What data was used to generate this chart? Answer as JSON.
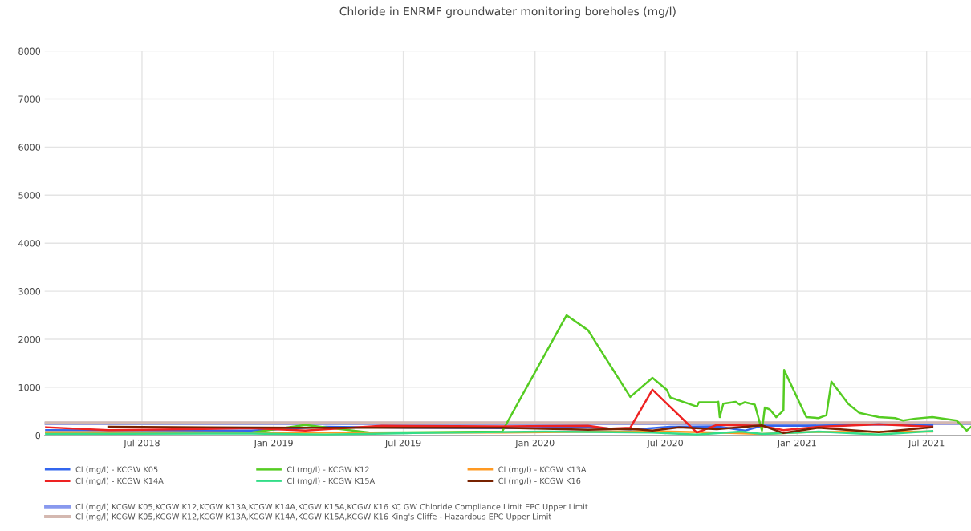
{
  "chart_data": {
    "type": "line",
    "title": "Chloride in ENRMF groundwater monitoring boreholes (mg/l)",
    "xlim": [
      "2018-02-15",
      "2021-09-01"
    ],
    "xticks": [
      {
        "value": "2018-07-01",
        "label": "Jul 2018"
      },
      {
        "value": "2019-01-01",
        "label": "Jan 2019"
      },
      {
        "value": "2019-07-01",
        "label": "Jul 2019"
      },
      {
        "value": "2020-01-01",
        "label": "Jan 2020"
      },
      {
        "value": "2020-07-01",
        "label": "Jul 2020"
      },
      {
        "value": "2021-01-01",
        "label": "Jan 2021"
      },
      {
        "value": "2021-07-01",
        "label": "Jul 2021"
      }
    ],
    "ylim": [
      0,
      8000
    ],
    "yticks": [
      0,
      1000,
      2000,
      3000,
      4000,
      5000,
      6000,
      7000,
      8000
    ],
    "grid": true,
    "legend": "bottom",
    "marker": "none",
    "line_style": "solid",
    "series": [
      {
        "name": "Cl (mg/l) - KCGW K05",
        "color": "#3366ee",
        "x": [
          "2018-02-17",
          "2018-12-01",
          "2019-03-15",
          "2019-07-15",
          "2019-11-16",
          "2020-03-15",
          "2020-05-13",
          "2020-07-08",
          "2020-09-11",
          "2020-10-20",
          "2020-11-13",
          "2021-01-14",
          "2021-04-25",
          "2021-07-09"
        ],
        "values": [
          110,
          100,
          180,
          160,
          150,
          170,
          120,
          180,
          190,
          100,
          200,
          200,
          230,
          210
        ]
      },
      {
        "name": "Cl (mg/l) - KCGW K12",
        "color": "#55cc22",
        "x": [
          "2018-02-17",
          "2018-12-01",
          "2019-02-14",
          "2019-05-15",
          "2019-11-16",
          "2020-02-14",
          "2020-03-15",
          "2020-05-13",
          "2020-06-13",
          "2020-07-03",
          "2020-07-08",
          "2020-08-14",
          "2020-08-17",
          "2020-09-11",
          "2020-09-13",
          "2020-09-15",
          "2020-09-20",
          "2020-10-07",
          "2020-10-13",
          "2020-10-20",
          "2020-11-03",
          "2020-11-13",
          "2020-11-17",
          "2020-11-24",
          "2020-12-03",
          "2020-12-13",
          "2020-12-14",
          "2021-01-14",
          "2021-01-31",
          "2021-02-11",
          "2021-02-18",
          "2021-03-14",
          "2021-03-29",
          "2021-04-25",
          "2021-05-18",
          "2021-05-29",
          "2021-06-15",
          "2021-07-09",
          "2021-08-12",
          "2021-08-26",
          "2021-09-01"
        ],
        "values": [
          60,
          60,
          220,
          60,
          80,
          2500,
          2190,
          800,
          1200,
          950,
          790,
          600,
          690,
          690,
          700,
          380,
          660,
          700,
          640,
          690,
          640,
          100,
          580,
          540,
          380,
          520,
          1360,
          380,
          360,
          420,
          1120,
          650,
          470,
          380,
          360,
          310,
          350,
          380,
          310,
          100,
          180
        ]
      },
      {
        "name": "Cl (mg/l) - KCGW K13A",
        "color": "#ff9922",
        "x": [
          "2018-02-17",
          "2018-12-01",
          "2019-11-16",
          "2020-06-13",
          "2020-09-11",
          "2020-11-13",
          "2021-01-14",
          "2021-07-09"
        ],
        "values": [
          70,
          60,
          60,
          90,
          60,
          30,
          70,
          80
        ]
      },
      {
        "name": "Cl (mg/l) - KCGW K14A",
        "color": "#ee2222",
        "x": [
          "2018-02-17",
          "2018-05-15",
          "2018-12-01",
          "2019-02-14",
          "2019-06-01",
          "2019-11-16",
          "2020-03-15",
          "2020-04-15",
          "2020-05-13",
          "2020-06-13",
          "2020-08-14",
          "2020-09-11",
          "2020-11-13",
          "2020-12-13",
          "2021-01-31",
          "2021-04-25",
          "2021-07-09"
        ],
        "values": [
          170,
          110,
          150,
          100,
          200,
          190,
          200,
          140,
          160,
          950,
          60,
          220,
          200,
          110,
          180,
          230,
          180
        ]
      },
      {
        "name": "Cl (mg/l) - KCGW K15A",
        "color": "#33dd88",
        "x": [
          "2018-02-17",
          "2018-12-01",
          "2019-03-15",
          "2019-07-15",
          "2020-01-15",
          "2020-06-13",
          "2020-08-14",
          "2020-10-15",
          "2020-11-13",
          "2021-01-31",
          "2021-04-25",
          "2021-07-09"
        ],
        "values": [
          30,
          40,
          20,
          50,
          80,
          60,
          20,
          80,
          30,
          80,
          20,
          90
        ]
      },
      {
        "name": "Cl (mg/l) - KCGW K16",
        "color": "#772200",
        "x": [
          "2018-05-15",
          "2019-02-14",
          "2019-11-16",
          "2020-03-15",
          "2020-05-13",
          "2020-06-13",
          "2020-07-20",
          "2020-09-11",
          "2020-11-13",
          "2020-12-13",
          "2021-01-31",
          "2021-04-25",
          "2021-06-01",
          "2021-07-09"
        ],
        "values": [
          180,
          160,
          160,
          120,
          140,
          100,
          170,
          130,
          210,
          50,
          160,
          70,
          120,
          170
        ]
      },
      {
        "name": "Cl (mg/l) KCGW K05,KCGW K12,KCGW K13A,KCGW K14A,KCGW K15A,KCGW K16 KC GW Chloride Compliance Limit EPC Upper Limit",
        "color": "#8899ee",
        "x": [
          "2018-02-15",
          "2021-09-01"
        ],
        "values": [
          250,
          250
        ]
      },
      {
        "name": "Cl (mg/l) KCGW K05,KCGW K12,KCGW K13A,KCGW K14A,KCGW K15A,KCGW K16 King's Cliffe - Hazardous EPC Upper Limit",
        "color": "#d4b8b0",
        "x": [
          "2018-02-15",
          "2021-09-01"
        ],
        "values": [
          260,
          260
        ]
      }
    ]
  }
}
